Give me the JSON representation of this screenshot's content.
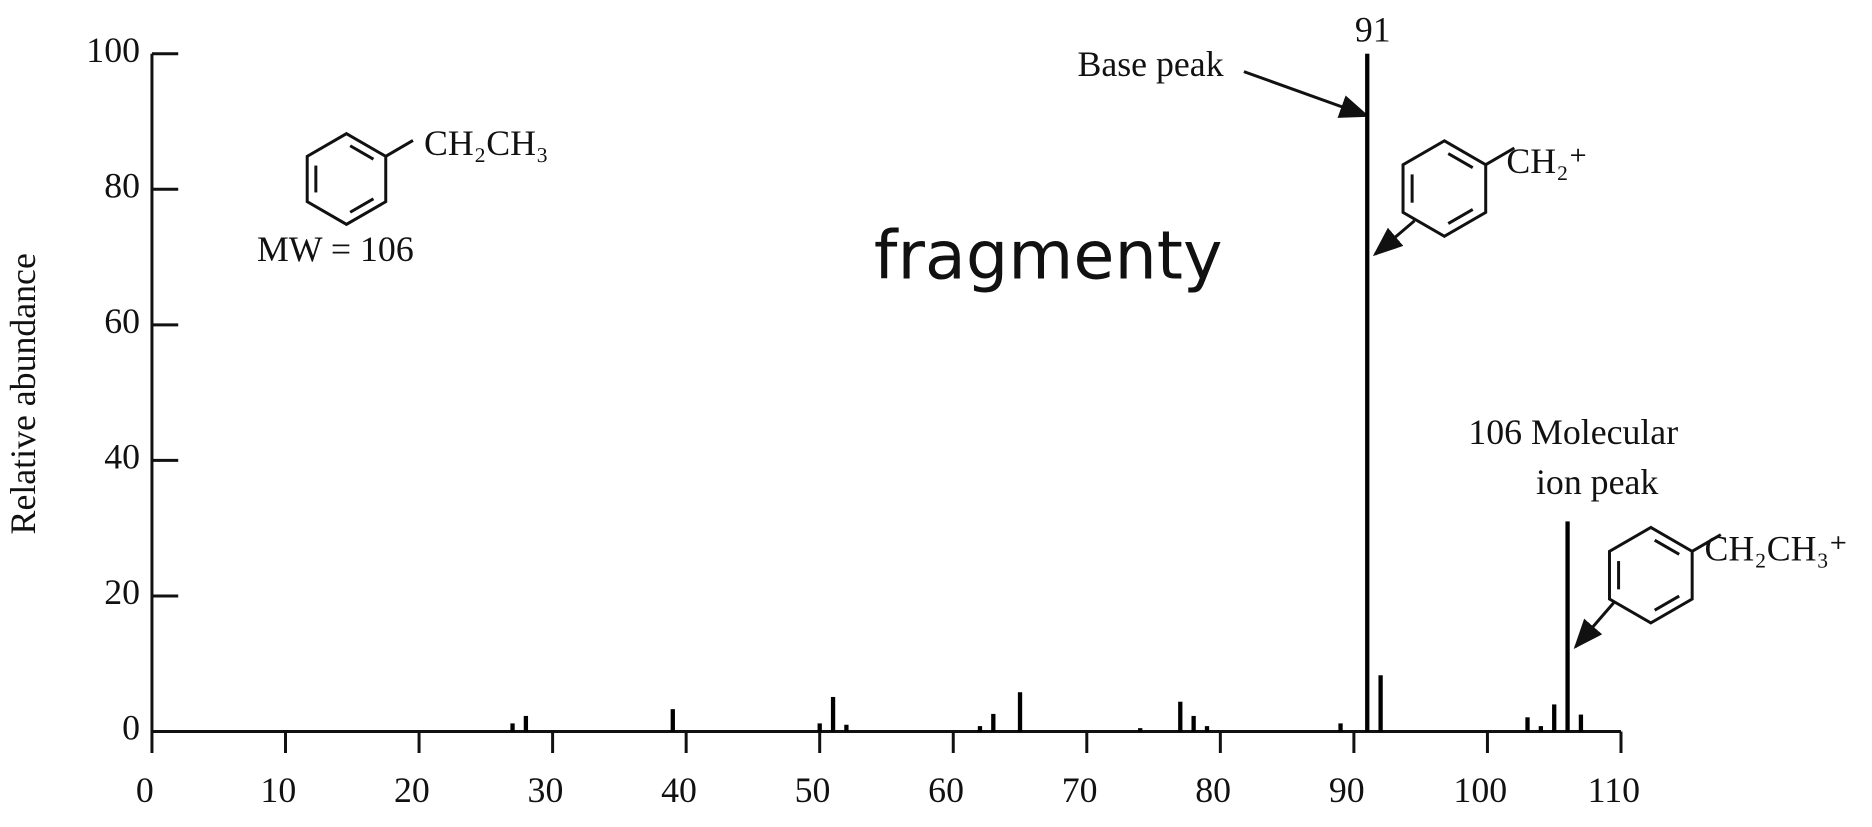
{
  "chart_data": {
    "type": "bar",
    "y_label": "Relative abundance",
    "x": [
      27,
      28,
      39,
      50,
      51,
      52,
      62,
      63,
      65,
      74,
      77,
      78,
      79,
      89,
      91,
      92,
      103,
      104,
      105,
      106,
      107
    ],
    "values": [
      1.2,
      2.3,
      3.3,
      1.2,
      5.1,
      1,
      0.8,
      2.6,
      5.8,
      0.5,
      4.4,
      2.3,
      0.8,
      1.2,
      100,
      8.3,
      2.1,
      0.8,
      4,
      31,
      2.5
    ],
    "color": "#000000",
    "xlim": [
      0,
      110
    ],
    "xticks": [
      0,
      10,
      20,
      30,
      40,
      50,
      60,
      70,
      80,
      90,
      100,
      110
    ],
    "ylim": [
      0,
      100
    ],
    "yticks": [
      0,
      20,
      40,
      60,
      80,
      100
    ],
    "annotations": {
      "base_peak_mass": "91",
      "base_peak": "Base peak",
      "molecular_ion": [
        "106 Molecular",
        "ion peak"
      ],
      "molecule": "CH₂CH₃",
      "mw": "MW = 106",
      "fragment_91": "CH₂⁺",
      "fragment_106": "CH₂CH₃⁺",
      "overlay": "fragmenty"
    }
  }
}
